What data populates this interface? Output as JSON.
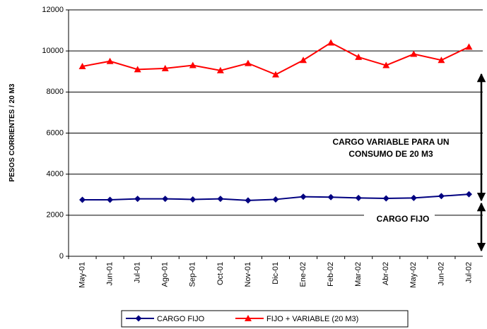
{
  "chart_data": {
    "type": "line",
    "y_label": "PESOS CORRIENTES / 20 M3",
    "categories": [
      "May-01",
      "Jun-01",
      "Jul-01",
      "Ago-01",
      "Sep-01",
      "Oct-01",
      "Nov-01",
      "Dic-01",
      "Ene-02",
      "Feb-02",
      "Mar-02",
      "Abr-02",
      "May-02",
      "Jun-02",
      "Jul-02"
    ],
    "series": [
      {
        "name": "CARGO FIJO",
        "color": "#000080",
        "marker": "diamond",
        "values": [
          2750,
          2750,
          2800,
          2800,
          2770,
          2800,
          2720,
          2770,
          2900,
          2880,
          2840,
          2820,
          2840,
          2930,
          3020
        ]
      },
      {
        "name": "FIJO + VARIABLE (20 M3)",
        "color": "#ff0000",
        "marker": "triangle",
        "values": [
          9250,
          9500,
          9100,
          9150,
          9300,
          9050,
          9400,
          8850,
          9550,
          10400,
          9700,
          9300,
          9850,
          9550,
          10200
        ]
      }
    ],
    "ylim": [
      0,
      12000
    ],
    "yticks": [
      0,
      2000,
      4000,
      6000,
      8000,
      10000,
      12000
    ],
    "grid": true,
    "annotations": [
      "CARGO  VARIABLE PARA UN",
      "CONSUMO DE 20 M3",
      "CARGO FIJO"
    ]
  }
}
